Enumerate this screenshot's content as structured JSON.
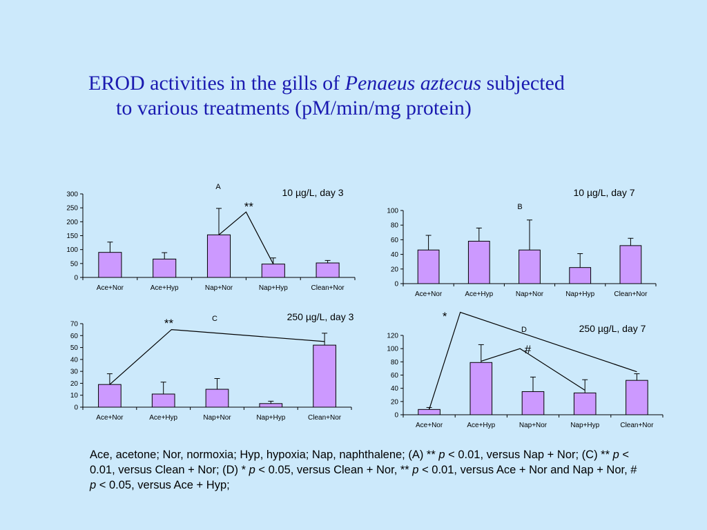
{
  "title": {
    "prefix": "EROD activities in the gills of ",
    "species": "Penaeus aztecus",
    "suffix": " subjected",
    "line2": "to various treatments (pM/min/mg protein)"
  },
  "footnote": {
    "t1": "Ace, acetone; Nor, normoxia; Hyp, hypoxia; Nap, naphthalene; (A) ** ",
    "p1": "p",
    "t2": " < 0.01, versus Nap + Nor; (C) ** ",
    "p2": "p",
    "t3": " < 0.01, versus Clean + Nor; (D) * ",
    "p3": "p",
    "t4": " < 0.05, versus Clean + Nor, ** ",
    "p4": "p",
    "t5": " < 0.01, versus Ace + Nor and Nap + Nor, # ",
    "p5": "p",
    "t6": " < 0.05, versus Ace + Hyp;"
  },
  "colors": {
    "bar_fill": "#cc99ff",
    "bar_stroke": "#000000",
    "title": "#1a1ab0"
  },
  "chart_data": [
    {
      "type": "bar",
      "panel": "A",
      "label": "10 µg/L, day 3",
      "categories": [
        "Ace+Nor",
        "Ace+Hyp",
        "Nap+Nor",
        "Nap+Hyp",
        "Clean+Nor"
      ],
      "values": [
        90,
        66,
        153,
        48,
        52
      ],
      "errors": [
        37,
        23,
        95,
        22,
        9
      ],
      "ylim": [
        0,
        300
      ],
      "yticks": [
        0,
        50,
        100,
        150,
        200,
        250,
        300
      ],
      "annotations": [
        {
          "text": "**",
          "path": [
            [
              2,
              153
            ],
            [
              2.5,
              235
            ],
            [
              3,
              48
            ]
          ],
          "label_at": [
            2.55,
            240
          ]
        }
      ]
    },
    {
      "type": "bar",
      "panel": "B",
      "label": "10 µg/L, day 7",
      "categories": [
        "Ace+Nor",
        "Ace+Hyp",
        "Nap+Nor",
        "Nap+Hyp",
        "Clean+Nor"
      ],
      "values": [
        46,
        58,
        46,
        22,
        52
      ],
      "errors": [
        20,
        18,
        41,
        19,
        10
      ],
      "ylim": [
        0,
        100
      ],
      "yticks": [
        0,
        20,
        40,
        60,
        80,
        100
      ],
      "annotations": []
    },
    {
      "type": "bar",
      "panel": "C",
      "label": "250 µg/L, day 3",
      "categories": [
        "Ace+Nor",
        "Ace+Hyp",
        "Nap+Nor",
        "Nap+Hyp",
        "Clean+Nor"
      ],
      "values": [
        19,
        11,
        15,
        3,
        52
      ],
      "errors": [
        9,
        10,
        9,
        2,
        10
      ],
      "ylim": [
        0,
        70
      ],
      "yticks": [
        0,
        10,
        20,
        30,
        40,
        50,
        60,
        70
      ],
      "annotations": [
        {
          "text": "**",
          "path": [
            [
              0,
              19
            ],
            [
              1.15,
              65
            ],
            [
              4,
              55
            ]
          ],
          "label_at": [
            1.1,
            67
          ]
        }
      ]
    },
    {
      "type": "bar",
      "panel": "D",
      "label": "250 µg/L, day 7",
      "categories": [
        "Ace+Nor",
        "Ace+Hyp",
        "Nap+Nor",
        "Nap+Hyp",
        "Clean+Nor"
      ],
      "values": [
        8,
        79,
        35,
        33,
        52
      ],
      "errors": [
        3,
        27,
        22,
        20,
        10
      ],
      "ylim": [
        0,
        120
      ],
      "yticks": [
        0,
        20,
        40,
        60,
        80,
        100,
        120
      ],
      "annotations": [
        {
          "text": "*",
          "path": [
            [
              0,
              8
            ],
            [
              0.6,
              155
            ],
            [
              4,
              65
            ]
          ],
          "label_at": [
            0.3,
            143
          ]
        },
        {
          "text": "#",
          "path": [
            [
              1,
              81
            ],
            [
              1.75,
              100
            ],
            [
              3,
              37
            ]
          ],
          "label_at": [
            1.9,
            93
          ]
        }
      ]
    }
  ]
}
